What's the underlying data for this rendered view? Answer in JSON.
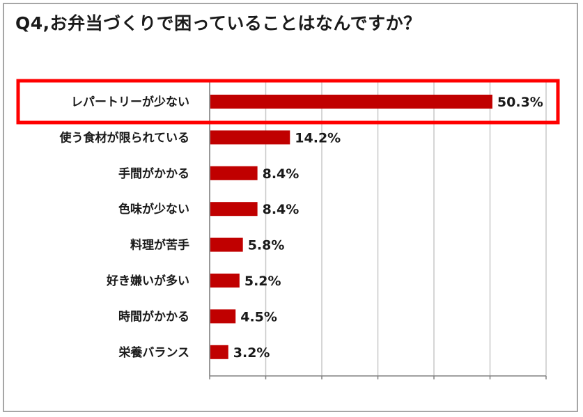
{
  "chart_data": {
    "type": "bar",
    "orientation": "horizontal",
    "title": "Q4,お弁当づくりで困っていることはなんですか？",
    "categories": [
      "レパートリーが少ない",
      "使う食材が限られている",
      "手間がかかる",
      "色味が少ない",
      "料理が苦手",
      "好き嫌いが多い",
      "時間がかかる",
      "栄養バランス"
    ],
    "values": [
      50.3,
      14.2,
      8.4,
      8.4,
      5.8,
      5.2,
      4.5,
      3.2
    ],
    "value_labels": [
      "50.3%",
      "14.2%",
      "8.4%",
      "8.4%",
      "5.8%",
      "5.2%",
      "4.5%",
      "3.2%"
    ],
    "xlim": [
      0,
      60
    ],
    "grid": true,
    "highlight_index": 0,
    "bar_color": "#c00000",
    "highlight_color": "#ff0000",
    "grid_color": "#c8c8c8"
  }
}
